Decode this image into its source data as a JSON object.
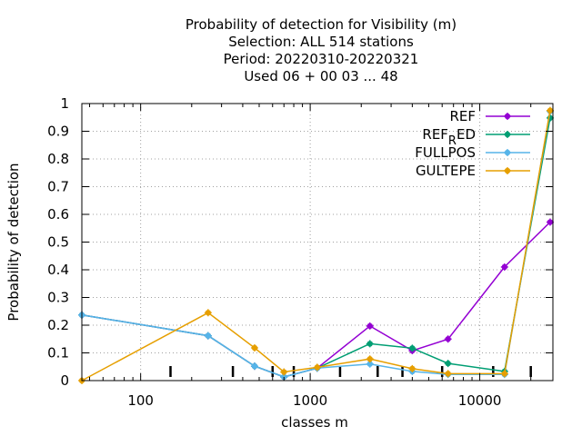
{
  "chart_data": {
    "type": "line",
    "title_lines": [
      "Probability of detection  for Visibility (m)",
      "Selection: ALL    514 stations",
      "Period: 20220310-20220321",
      "Used  06 + 00 03 ... 48"
    ],
    "xlabel": "classes m",
    "ylabel": "Probability of detection",
    "x_scale": "log",
    "xlim": [
      45,
      27000
    ],
    "ylim": [
      0,
      1
    ],
    "x_ticks": [
      100,
      1000,
      10000
    ],
    "x_tick_labels": [
      "100",
      "1000",
      "10000"
    ],
    "y_ticks": [
      0,
      0.1,
      0.2,
      0.3,
      0.4,
      0.5,
      0.6,
      0.7,
      0.8,
      0.9,
      1
    ],
    "y_tick_labels": [
      "0",
      "0.1",
      "0.2",
      "0.3",
      "0.4",
      "0.5",
      "0.6",
      "0.7",
      "0.8",
      "0.9",
      "1"
    ],
    "class_markers": [
      150,
      350,
      600,
      800,
      1500,
      2500,
      3500,
      6000,
      12000,
      20000
    ],
    "grid": true,
    "legend_position": "top-right",
    "x": [
      45,
      250,
      470,
      700,
      1100,
      2250,
      4000,
      6500,
      14000,
      26000
    ],
    "series": [
      {
        "name": "REF",
        "label_main": "REF",
        "label_sub": "",
        "label_rest": "",
        "color": "#9400d3",
        "values": [
          0.237,
          0.162,
          0.052,
          0.013,
          0.045,
          0.197,
          0.108,
          0.15,
          0.41,
          0.572
        ]
      },
      {
        "name": "REF_RED",
        "label_main": "REF",
        "label_sub": "R",
        "label_rest": "ED",
        "color": "#009e73",
        "values": [
          0.237,
          0.162,
          0.052,
          0.013,
          0.045,
          0.133,
          0.117,
          0.062,
          0.033,
          0.948
        ]
      },
      {
        "name": "FULLPOS",
        "label_main": "FULLPOS",
        "label_sub": "",
        "label_rest": "",
        "color": "#56b4e9",
        "values": [
          0.237,
          0.162,
          0.052,
          0.013,
          0.045,
          0.06,
          0.033,
          0.022,
          0.022,
          0.972
        ]
      },
      {
        "name": "GULTEPE",
        "label_main": "GULTEPE",
        "label_sub": "",
        "label_rest": "",
        "color": "#e69f00",
        "values": [
          0.0,
          0.245,
          0.118,
          0.031,
          0.048,
          0.078,
          0.043,
          0.025,
          0.025,
          0.975
        ]
      }
    ]
  }
}
